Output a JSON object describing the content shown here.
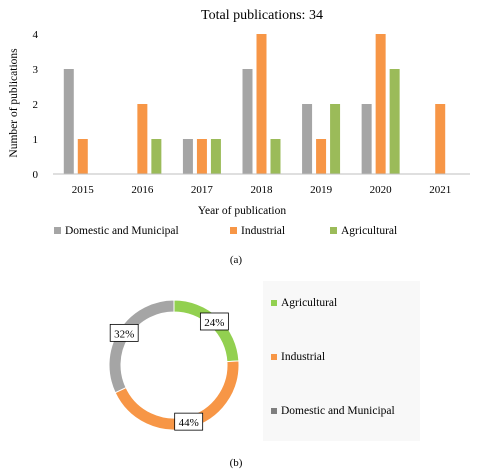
{
  "chart_data": [
    {
      "type": "bar",
      "title": "Total publications: 34",
      "xlabel": "Year of publication",
      "ylabel": "Number of publications",
      "categories": [
        "2015",
        "2016",
        "2017",
        "2018",
        "2019",
        "2020",
        "2021"
      ],
      "ylim": [
        0,
        4
      ],
      "yticks": [
        "0",
        "1",
        "2",
        "3",
        "4"
      ],
      "grid": false,
      "legend_position": "bottom",
      "series": [
        {
          "name": "Domestic and Municipal",
          "color": "#A5A5A5",
          "values": [
            3,
            0,
            1,
            3,
            2,
            2,
            0
          ]
        },
        {
          "name": "Industrial",
          "color": "#F79646",
          "values": [
            1,
            2,
            1,
            4,
            1,
            4,
            2
          ]
        },
        {
          "name": "Agricultural",
          "color": "#9BBB59",
          "values": [
            0,
            1,
            1,
            1,
            2,
            3,
            0
          ]
        }
      ],
      "caption": "(a)"
    },
    {
      "type": "pie",
      "style": "donut",
      "slices": [
        {
          "name": "Agricultural",
          "value": 24,
          "label": "24%",
          "color": "#92D050"
        },
        {
          "name": "Industrial",
          "value": 44,
          "label": "44%",
          "color": "#F79646"
        },
        {
          "name": "Domestic and Municipal",
          "value": 32,
          "label": "32%",
          "color": "#A5A5A5"
        }
      ],
      "legend": [
        {
          "name": "Agricultural",
          "color": "#92D050"
        },
        {
          "name": "Industrial",
          "color": "#F79646"
        },
        {
          "name": "Domestic and Municipal",
          "color": "#7F7F7F"
        }
      ],
      "legend_position": "right",
      "caption": "(b)"
    }
  ]
}
